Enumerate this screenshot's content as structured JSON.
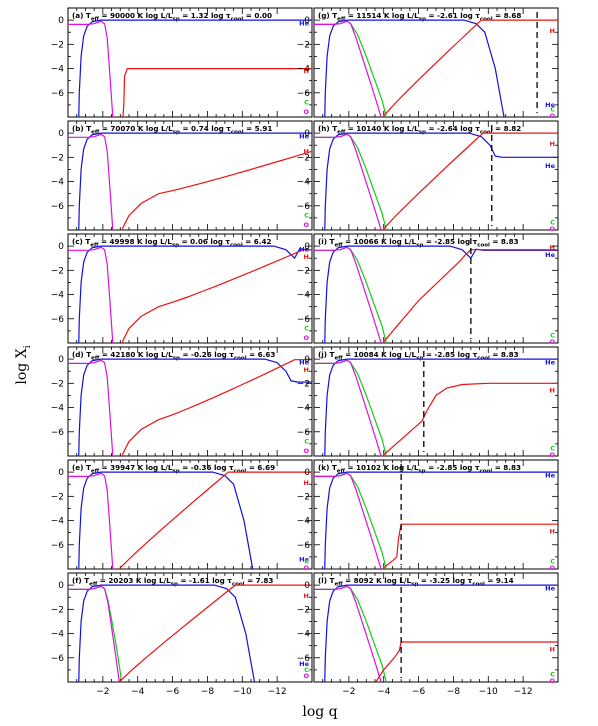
{
  "figure": {
    "ylabel_main": "log X",
    "ylabel_sub": "i",
    "xlabel": "log q"
  },
  "chart_data": {
    "type": "line",
    "xlim": [
      0,
      -14
    ],
    "ylim": [
      -8,
      1
    ],
    "x_ticks": [
      -2,
      -4,
      -6,
      -8,
      -10,
      -12
    ],
    "y_ticks": [
      0,
      -2,
      -4,
      -6
    ],
    "colors": {
      "H": "#ee1111",
      "He": "#1111dd",
      "C": "#11cc11",
      "O": "#dd11dd"
    },
    "species_labels": {
      "H": "H",
      "He": "He",
      "C": "C",
      "O": "O"
    },
    "panels": [
      {
        "label": "(a)",
        "teff": "90000",
        "logL": "1.32",
        "logtau": "0.00",
        "he_rise": -0.3,
        "he_fall": null,
        "he_after": 0,
        "co_end": -2.6,
        "c_sep": false,
        "h_start": -3.1,
        "h_mid": -3.3,
        "h_end": -13,
        "h_env": -4,
        "h_mode": "step",
        "h_top_at": null,
        "dashed": null,
        "tags": {
          "H": [
            -4.2
          ],
          "He": [
            -0.3
          ],
          "C": [
            -6.8
          ],
          "O": [
            -7.6
          ]
        }
      },
      {
        "label": "(b)",
        "teff": "70070",
        "logL": "0.74",
        "logtau": "5.91",
        "he_rise": -0.3,
        "he_fall": null,
        "he_after": 0,
        "co_end": -2.6,
        "c_sep": false,
        "h_start": -3.0,
        "h_env": null,
        "h_mode": "rise",
        "h_top_at": null,
        "h_final": -1.5,
        "dashed": null,
        "tags": {
          "H": [
            -1.5
          ],
          "He": [
            -0.3
          ],
          "C": [
            -6.8
          ],
          "O": [
            -7.6
          ]
        }
      },
      {
        "label": "(c)",
        "teff": "49998",
        "logL": "0.06",
        "logtau": "6.42",
        "he_rise": -0.3,
        "he_fall": -13,
        "he_after": -0.3,
        "co_end": -2.6,
        "c_sep": false,
        "h_start": -3.0,
        "h_env": null,
        "h_mode": "rise",
        "h_top_at": -13.5,
        "h_final": -0.3,
        "dashed": null,
        "tags": {
          "H": [
            -0.9
          ],
          "He": [
            -0.3
          ],
          "C": [
            -6.8
          ],
          "O": [
            -7.6
          ]
        }
      },
      {
        "label": "(d)",
        "teff": "42180",
        "logL": "-0.26",
        "logtau": "6.63",
        "he_rise": -0.3,
        "he_fall": -12.5,
        "he_after": -1.9,
        "co_end": -2.6,
        "c_sep": false,
        "h_start": -3.0,
        "h_env": null,
        "h_mode": "rise",
        "h_top_at": -13.0,
        "h_final": -0.05,
        "dashed": null,
        "tags": {
          "H": [
            -0.9
          ],
          "He": [
            -0.3
          ],
          "C": [
            -6.8
          ],
          "O": [
            -7.6
          ]
        }
      },
      {
        "label": "(e)",
        "teff": "39947",
        "logL": "-0.36",
        "logtau": "6.69",
        "he_rise": -0.3,
        "he_fall": -9.5,
        "he_after": -8,
        "co_end": -2.6,
        "c_sep": false,
        "h_start": -2.9,
        "h_env": null,
        "h_mode": "rise",
        "h_top_at": -9.2,
        "h_final": 0,
        "dashed": null,
        "tags": {
          "H": [
            -0.9
          ],
          "He": [
            -7.2
          ],
          "C": [
            -7.4
          ],
          "O": [
            -7.9
          ]
        }
      },
      {
        "label": "(f)",
        "teff": "20203",
        "logL": "-1.61",
        "logtau": "7.83",
        "he_rise": -0.3,
        "he_fall": -9.6,
        "he_after": -8,
        "co_end": -3.0,
        "c_sep": true,
        "h_start": -2.9,
        "h_env": null,
        "h_mode": "rise",
        "h_top_at": -9.6,
        "h_final": 0,
        "dashed": null,
        "tags": {
          "H": [
            -0.9
          ],
          "He": [
            -6.5
          ],
          "C": [
            -7.0
          ],
          "O": [
            -7.5
          ]
        }
      },
      {
        "label": "(g)",
        "teff": "11514",
        "logL": "-2.61",
        "logtau": "8.68",
        "he_rise": -0.3,
        "he_fall": -9.8,
        "he_after": -8,
        "co_end": -4.0,
        "c_sep": true,
        "h_start": -3.9,
        "h_env": null,
        "h_mode": "rise",
        "h_top_at": -9.6,
        "h_final": 0,
        "dashed": -12.8,
        "tags": {
          "H": [
            -0.9
          ],
          "He": [
            -7.0
          ],
          "C": [
            -7.4
          ],
          "O": [
            -7.9
          ]
        }
      },
      {
        "label": "(h)",
        "teff": "10140",
        "logL": "-2.64",
        "logtau": "8.82",
        "he_rise": -0.3,
        "he_fall": -10.1,
        "he_after": -2.0,
        "co_end": -4.0,
        "c_sep": true,
        "h_start": -3.9,
        "h_env": null,
        "h_mode": "rise",
        "h_top_at": -9.7,
        "h_final": 0,
        "dashed": -10.2,
        "tags": {
          "H": [
            -0.9
          ],
          "He": [
            -2.7
          ],
          "C": [
            -7.4
          ],
          "O": [
            -7.9
          ]
        }
      },
      {
        "label": "(i)",
        "teff": "10066",
        "logL": "-2.85",
        "logtau": "8.83",
        "he_rise": -0.3,
        "he_fall": -9.0,
        "he_after": -0.35,
        "co_end": -4.0,
        "c_sep": true,
        "h_start": -3.9,
        "h_env": null,
        "h_mode": "rise",
        "h_top_at": -9.0,
        "h_final": -0.3,
        "dashed": -9.0,
        "tags": {
          "H": [
            -0.1
          ],
          "He": [
            -0.75
          ],
          "C": [
            -7.4
          ],
          "O": [
            -7.9
          ]
        }
      },
      {
        "label": "(j)",
        "teff": "10084",
        "logL": "-2.85",
        "logtau": "8.83",
        "he_rise": -0.3,
        "he_fall": null,
        "he_after": 0,
        "co_end": -4.0,
        "c_sep": true,
        "h_start": -3.9,
        "h_env": -2.0,
        "h_mode": "bend",
        "h_top_at": null,
        "h_final": -2.0,
        "dashed": -6.3,
        "tags": {
          "H": [
            -2.6
          ],
          "He": [
            -0.3
          ],
          "C": [
            -7.4
          ],
          "O": [
            -7.9
          ]
        }
      },
      {
        "label": "(k)",
        "teff": "10102",
        "logL": "-2.85",
        "logtau": "8.83",
        "he_rise": -0.3,
        "he_fall": null,
        "he_after": 0,
        "co_end": -4.0,
        "c_sep": true,
        "h_start": -3.9,
        "h_env": -4.3,
        "h_mode": "stepjump",
        "h_top_at": null,
        "h_final": -4.3,
        "dashed": -5.0,
        "tags": {
          "H": [
            -4.9
          ],
          "He": [
            -0.3
          ],
          "C": [
            -7.4
          ],
          "O": [
            -7.9
          ]
        }
      },
      {
        "label": "(l)",
        "teff": "8092",
        "logL": "-3.25",
        "logtau": "9.14",
        "he_rise": -0.3,
        "he_fall": null,
        "he_after": 0,
        "co_end": -4.0,
        "c_sep": true,
        "h_start": -3.3,
        "h_env": -4.7,
        "h_mode": "xstep",
        "h_top_at": null,
        "h_final": -4.7,
        "dashed": -5.0,
        "tags": {
          "H": [
            -5.3
          ],
          "He": [
            -0.3
          ],
          "C": [
            -7.4
          ],
          "O": [
            -7.9
          ]
        }
      }
    ]
  }
}
